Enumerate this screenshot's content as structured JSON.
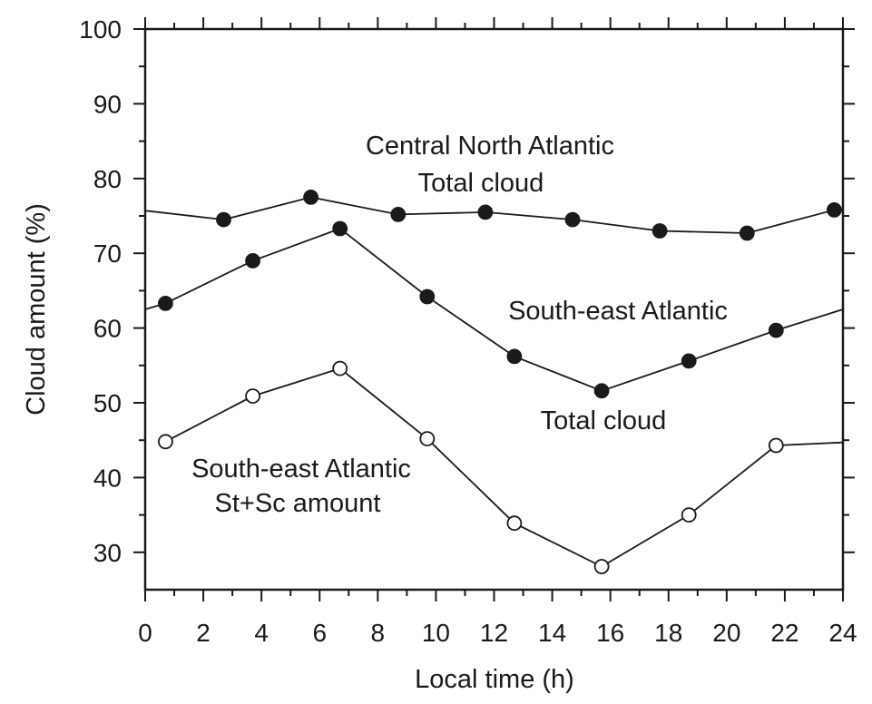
{
  "chart_data": {
    "type": "line",
    "title": "",
    "xlabel": "Local time (h)",
    "ylabel": "Cloud amount (%)",
    "xlim": [
      0,
      24
    ],
    "ylim": [
      25,
      100
    ],
    "x_ticks": [
      "0",
      "2",
      "4",
      "6",
      "8",
      "10",
      "12",
      "14",
      "16",
      "18",
      "20",
      "22",
      "24"
    ],
    "y_ticks": [
      "30",
      "40",
      "50",
      "60",
      "70",
      "80",
      "90",
      "100"
    ],
    "grid": false,
    "legend": "none",
    "series": [
      {
        "marker": "filled",
        "line_start": [
          0,
          75.7
        ],
        "line_end": [
          24,
          75.8
        ],
        "x": [
          2.7,
          5.7,
          8.7,
          11.7,
          14.7,
          17.7,
          20.7,
          23.7
        ],
        "y": [
          74.5,
          77.5,
          75.2,
          75.5,
          74.5,
          73.0,
          72.7,
          75.8
        ]
      },
      {
        "marker": "filled",
        "line_start": [
          0,
          62.5
        ],
        "line_end": [
          24,
          62.5
        ],
        "x": [
          0.7,
          3.7,
          6.7,
          9.7,
          12.7,
          15.7,
          18.7,
          21.7
        ],
        "y": [
          63.3,
          69.0,
          73.3,
          64.2,
          56.2,
          51.6,
          55.6,
          59.7
        ]
      },
      {
        "marker": "open",
        "line_start": null,
        "line_end": [
          24,
          44.7
        ],
        "x": [
          0.7,
          3.7,
          6.7,
          9.7,
          12.7,
          15.7,
          18.7,
          21.7
        ],
        "y": [
          44.8,
          50.9,
          54.6,
          45.2,
          33.9,
          28.1,
          35.0,
          44.3
        ]
      }
    ],
    "annotations": [
      {
        "id": "cna-1",
        "text": "Central North Atlantic"
      },
      {
        "id": "cna-2",
        "text": "Total cloud"
      },
      {
        "id": "sea-1",
        "text": "South-east Atlantic"
      },
      {
        "id": "sea-2",
        "text": "Total cloud"
      },
      {
        "id": "stsc-1",
        "text": "South-east Atlantic"
      },
      {
        "id": "stsc-2",
        "text": "St+Sc amount"
      }
    ],
    "colors": {
      "ink": "#1a1a1a",
      "background": "#ffffff"
    }
  }
}
